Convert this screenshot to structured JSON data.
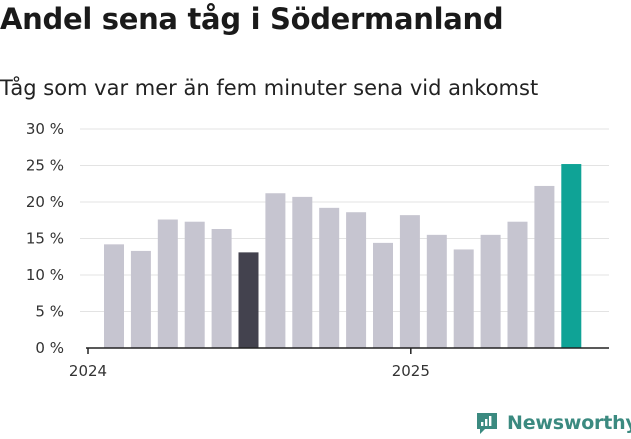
{
  "title": "Andel sena tåg i Södermanland",
  "subtitle": "Tåg som var mer än fem minuter sena vid ankomst",
  "brand": {
    "name": "Newsworthy"
  },
  "colors": {
    "default": "#c6c5d0",
    "highlight_dark": "#43424e",
    "highlight_accent": "#0fa396",
    "grid": "#e3e3e3",
    "axis": "#222222",
    "brand": "#3b8a80"
  },
  "chart_data": {
    "type": "bar",
    "title": "Andel sena tåg i Södermanland",
    "subtitle": "Tåg som var mer än fem minuter sena vid ankomst",
    "xlabel": "",
    "ylabel": "",
    "ylim": [
      0,
      30
    ],
    "y_ticks": [
      0,
      5,
      10,
      15,
      20,
      25,
      30
    ],
    "y_tick_labels": [
      "0 %",
      "5 %",
      "10 %",
      "15 %",
      "20 %",
      "25 %",
      "30 %"
    ],
    "x_tick_labels": [
      {
        "label": "2024",
        "index": 0
      },
      {
        "label": "2025",
        "index": 12
      }
    ],
    "grid": true,
    "values": [
      14.2,
      13.3,
      17.6,
      17.3,
      16.3,
      13.1,
      21.2,
      20.7,
      19.2,
      18.6,
      14.4,
      18.2,
      15.5,
      13.5,
      15.5,
      17.3,
      22.2,
      25.2
    ],
    "highlight": {
      "5": "dark",
      "17": "accent"
    }
  }
}
